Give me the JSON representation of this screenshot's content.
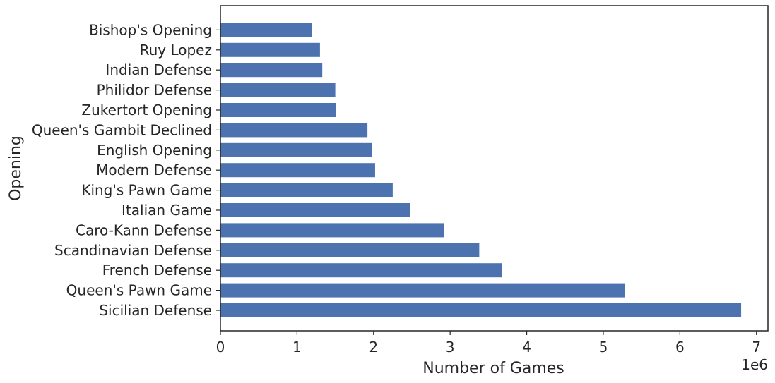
{
  "chart_data": {
    "type": "bar",
    "orientation": "horizontal",
    "title": "",
    "xlabel": "Number of Games",
    "ylabel": "Opening",
    "x_offset_label": "1e6",
    "xlim": [
      0,
      7.15
    ],
    "x_ticks": [
      0,
      1,
      2,
      3,
      4,
      5,
      6,
      7
    ],
    "x_tick_labels": [
      "0",
      "1",
      "2",
      "3",
      "4",
      "5",
      "6",
      "7"
    ],
    "value_scale": 1000000,
    "grid": false,
    "bar_color": "#4c72b0",
    "categories": [
      "Sicilian Defense",
      "Queen's Pawn Game",
      "French Defense",
      "Scandinavian Defense",
      "Caro-Kann Defense",
      "Italian Game",
      "King's Pawn Game",
      "Modern Defense",
      "English Opening",
      "Queen's Gambit Declined",
      "Zukertort Opening",
      "Philidor Defense",
      "Indian Defense",
      "Ruy Lopez",
      "Bishop's Opening"
    ],
    "values": [
      6.8,
      5.28,
      3.68,
      3.38,
      2.92,
      2.48,
      2.25,
      2.02,
      1.98,
      1.92,
      1.51,
      1.5,
      1.33,
      1.3,
      1.19
    ]
  }
}
